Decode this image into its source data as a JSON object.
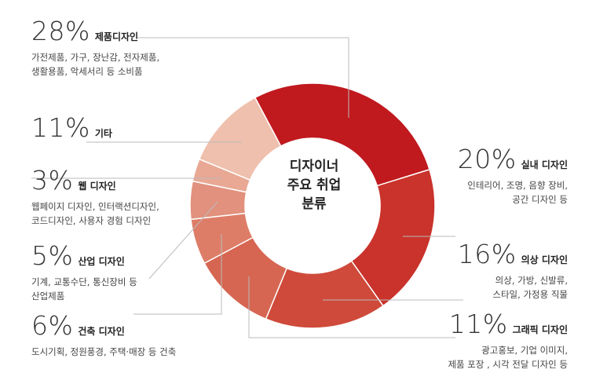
{
  "center_title": [
    "디자이너",
    "주요 취업",
    "분류"
  ],
  "chart_data": {
    "type": "pie",
    "title": "디자이너 주요 취업 분류",
    "unit": "%",
    "slices": [
      {
        "label": "제품디자인",
        "value": 28,
        "percent_text": "28%",
        "color": "#c0191e",
        "desc": [
          "가전제품, 가구, 장난감, 전자제품,",
          "생활용품, 악세서리 등 소비품"
        ]
      },
      {
        "label": "실내 디자인",
        "value": 20,
        "percent_text": "20%",
        "color": "#c9332b",
        "desc": [
          "인테리어, 조명, 음향 장비,",
          "공간 디자인 등"
        ]
      },
      {
        "label": "의상 디자인",
        "value": 16,
        "percent_text": "16%",
        "color": "#cf4a3a",
        "desc": [
          "의상, 가방, 신발류,",
          "스타일,  가정용 직물"
        ]
      },
      {
        "label": "그래픽 디자인",
        "value": 11,
        "percent_text": "11%",
        "color": "#d66652",
        "desc": [
          "광고홍보, 기업 이미지,",
          "제품 포장 , 시각 전달 디자인 등"
        ]
      },
      {
        "label": "건축 디자인",
        "value": 6,
        "percent_text": "6%",
        "color": "#dd7d68",
        "desc": [
          "도시기획, 정원풍경, 주택·매장 등 건축"
        ]
      },
      {
        "label": "산업 디자인",
        "value": 5,
        "percent_text": "5%",
        "color": "#e1917d",
        "desc": [
          "기계, 교통수단, 통신장비 등",
          "산업제품"
        ]
      },
      {
        "label": "웹 디자인",
        "value": 3,
        "percent_text": "3%",
        "color": "#e8a894",
        "desc": [
          "웹페이지 디자인, 인터랙션디자인,",
          "코드디자인, 사용자 경험 디자인"
        ]
      },
      {
        "label": "기타",
        "value": 11,
        "percent_text": "11%",
        "color": "#efc0ad",
        "desc": []
      }
    ]
  }
}
